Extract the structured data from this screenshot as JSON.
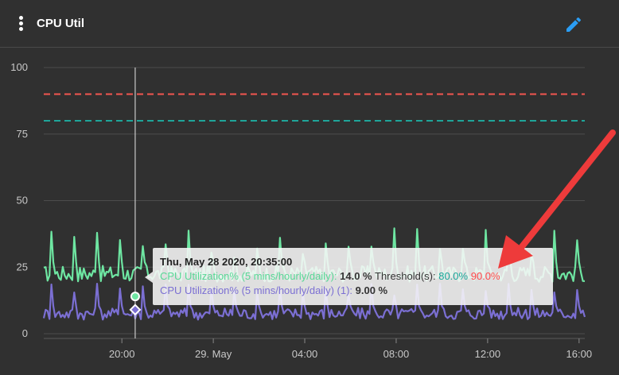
{
  "header": {
    "title": "CPU Util",
    "menu_icon": "more-vertical-icon",
    "edit_icon": "pencil-icon",
    "edit_color": "#2a9df4"
  },
  "chart_data": {
    "type": "line",
    "xlabel": "",
    "ylabel": "",
    "ylim": [
      0,
      100
    ],
    "y_ticks": [
      "100",
      "75",
      "50",
      "25",
      "0"
    ],
    "x_ticks": [
      "20:00",
      "29. May",
      "04:00",
      "08:00",
      "12:00",
      "16:00"
    ],
    "x_range": [
      "2020-05-28 16:35",
      "2020-05-29 16:15"
    ],
    "thresholds": [
      {
        "value": 90,
        "color": "#f2564f"
      },
      {
        "value": 80,
        "color": "#1fa59a"
      }
    ],
    "series": [
      {
        "color": "#6ee6a2",
        "baseline": 22.5,
        "spike_peak": 40,
        "spike_interval_hours": 1
      },
      {
        "color": "#7b6fd3",
        "baseline": 7.5,
        "spike_peak": 19,
        "spike_interval_hours": 1
      }
    ],
    "crosshair_time": "2020-05-28 20:35"
  },
  "tooltip": {
    "date": "Thu, May 28 2020, 20:35:00",
    "row1_label": "CPU Utilization% (5 mins/hourly/daily):",
    "row1_value": "14.0 %",
    "threshold_label": "Threshold(s):",
    "threshold1": "80.0%",
    "threshold2": "90.0%",
    "row2_label": "CPU Utilization% (5 mins/hourly/daily) (1):",
    "row2_value": "9.00 %"
  },
  "annotation": {
    "arrow_color": "#ee3b3b"
  }
}
